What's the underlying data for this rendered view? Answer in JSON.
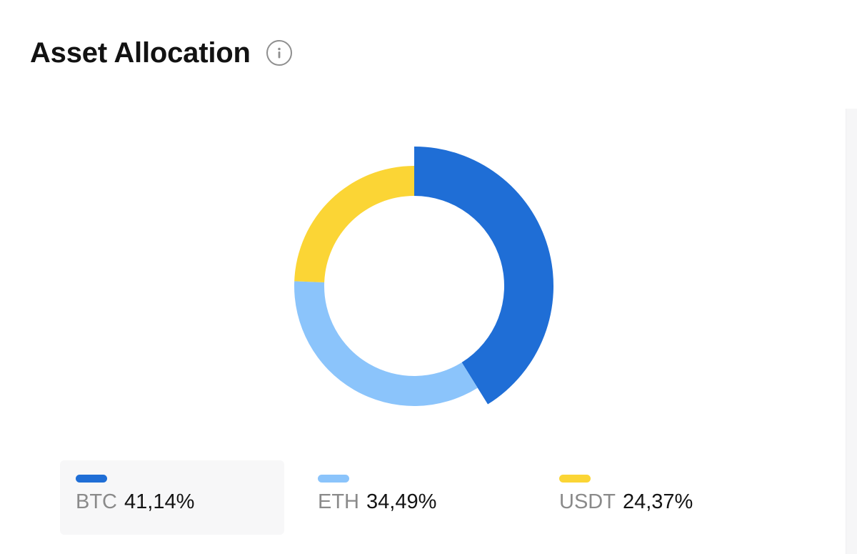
{
  "header": {
    "title": "Asset Allocation",
    "info_icon": "info-circle-icon"
  },
  "chart_data": {
    "type": "pie",
    "style": "donut",
    "selected": "BTC",
    "slices": [
      {
        "label": "BTC",
        "value": 41.14,
        "value_label": "41,14%",
        "color": "#1f6ed6"
      },
      {
        "label": "ETH",
        "value": 34.49,
        "value_label": "34,49%",
        "color": "#8bc4fb"
      },
      {
        "label": "USDT",
        "value": 24.37,
        "value_label": "24,37%",
        "color": "#fbd535"
      }
    ]
  },
  "colors": {
    "text_primary": "#121212",
    "text_secondary": "#8a8a8a",
    "icon": "#8f8f8f"
  }
}
